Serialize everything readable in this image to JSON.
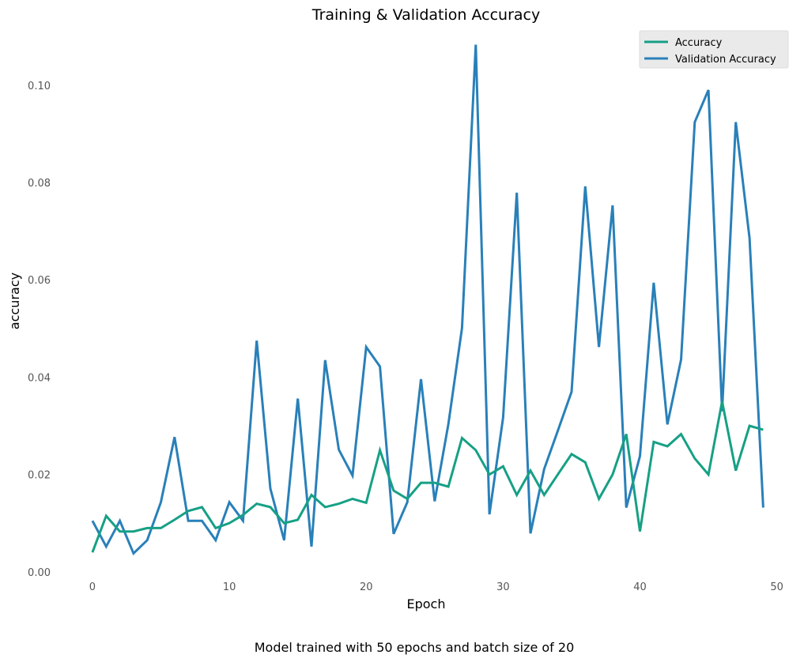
{
  "chart_data": {
    "type": "line",
    "title": "Training & Validation Accuracy",
    "xlabel": "Epoch",
    "ylabel": "accuracy",
    "caption": "Model trained with 50 epochs and batch size of 20",
    "xlim": [
      -3,
      51
    ],
    "ylim": [
      -0.001,
      0.111
    ],
    "xticks": [
      0,
      10,
      20,
      30,
      40,
      50
    ],
    "yticks": [
      0.0,
      0.02,
      0.04,
      0.06,
      0.08,
      0.1
    ],
    "xtick_labels": [
      "0",
      "10",
      "20",
      "30",
      "40",
      "50"
    ],
    "ytick_labels": [
      "0.00",
      "0.02",
      "0.04",
      "0.06",
      "0.08",
      "0.10"
    ],
    "grid": false,
    "legend_position": "top-right",
    "x": [
      0,
      1,
      2,
      3,
      4,
      5,
      6,
      7,
      8,
      9,
      10,
      11,
      12,
      13,
      14,
      15,
      16,
      17,
      18,
      19,
      20,
      21,
      22,
      23,
      24,
      25,
      26,
      27,
      28,
      29,
      30,
      31,
      32,
      33,
      34,
      35,
      36,
      37,
      38,
      39,
      40,
      41,
      42,
      43,
      44,
      45,
      46,
      47,
      48,
      49
    ],
    "series": [
      {
        "name": "Accuracy",
        "color": "#16a085",
        "values": [
          0.004,
          0.0115,
          0.0083,
          0.0083,
          0.009,
          0.009,
          0.0107,
          0.0125,
          0.0133,
          0.009,
          0.01,
          0.0117,
          0.014,
          0.0133,
          0.01,
          0.0107,
          0.0158,
          0.0133,
          0.014,
          0.015,
          0.0142,
          0.025,
          0.0167,
          0.015,
          0.0183,
          0.0183,
          0.0175,
          0.0275,
          0.025,
          0.02,
          0.0217,
          0.0158,
          0.0208,
          0.0158,
          0.02,
          0.0242,
          0.0225,
          0.015,
          0.02,
          0.0283,
          0.0083,
          0.0267,
          0.0258,
          0.0283,
          0.0233,
          0.02,
          0.035,
          0.0208,
          0.03,
          0.0292
        ]
      },
      {
        "name": "Validation Accuracy",
        "color": "#2980b9",
        "values": [
          0.0105,
          0.0052,
          0.0105,
          0.0038,
          0.0065,
          0.0143,
          0.0277,
          0.0105,
          0.0105,
          0.0065,
          0.0143,
          0.0105,
          0.0475,
          0.0171,
          0.0065,
          0.0356,
          0.0052,
          0.0435,
          0.0251,
          0.0198,
          0.0462,
          0.0422,
          0.0078,
          0.0143,
          0.0396,
          0.0145,
          0.0303,
          0.0501,
          0.1083,
          0.0118,
          0.0317,
          0.0779,
          0.0079,
          0.0211,
          0.029,
          0.037,
          0.0792,
          0.0462,
          0.0753,
          0.0132,
          0.0238,
          0.0594,
          0.0303,
          0.0436,
          0.0924,
          0.099,
          0.033,
          0.0924,
          0.0686,
          0.0132
        ]
      }
    ]
  }
}
